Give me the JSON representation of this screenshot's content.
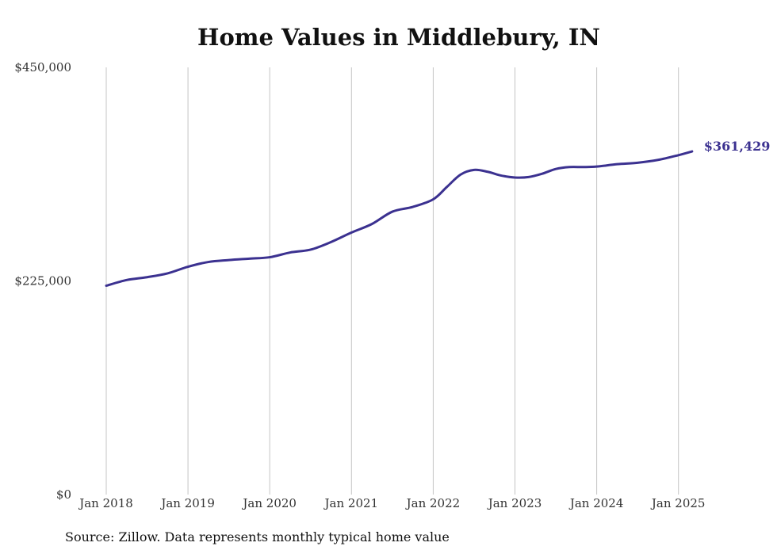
{
  "chart_data": {
    "type": "line",
    "title": "Home Values in Middlebury, IN",
    "xlabel": "",
    "ylabel": "",
    "ylim": [
      0,
      450000
    ],
    "y_ticks": [
      {
        "value": 0,
        "label": "$0"
      },
      {
        "value": 225000,
        "label": "$225,000"
      },
      {
        "value": 450000,
        "label": "$450,000"
      }
    ],
    "x_ticks": [
      {
        "value": "2018-01",
        "label": "Jan 2018"
      },
      {
        "value": "2019-01",
        "label": "Jan 2019"
      },
      {
        "value": "2020-01",
        "label": "Jan 2020"
      },
      {
        "value": "2021-01",
        "label": "Jan 2021"
      },
      {
        "value": "2022-01",
        "label": "Jan 2022"
      },
      {
        "value": "2023-01",
        "label": "Jan 2023"
      },
      {
        "value": "2024-01",
        "label": "Jan 2024"
      },
      {
        "value": "2025-01",
        "label": "Jan 2025"
      }
    ],
    "grid": {
      "vertical": true,
      "horizontal": false
    },
    "series": [
      {
        "color": "#3b3190",
        "end_label": "$361,429",
        "points": [
          {
            "x": "2018-01",
            "y": 220000
          },
          {
            "x": "2018-04",
            "y": 226000
          },
          {
            "x": "2018-07",
            "y": 229000
          },
          {
            "x": "2018-10",
            "y": 233000
          },
          {
            "x": "2019-01",
            "y": 240000
          },
          {
            "x": "2019-04",
            "y": 245000
          },
          {
            "x": "2019-07",
            "y": 247000
          },
          {
            "x": "2019-10",
            "y": 248500
          },
          {
            "x": "2020-01",
            "y": 250000
          },
          {
            "x": "2020-04",
            "y": 255000
          },
          {
            "x": "2020-07",
            "y": 258000
          },
          {
            "x": "2020-10",
            "y": 266000
          },
          {
            "x": "2021-01",
            "y": 276000
          },
          {
            "x": "2021-04",
            "y": 285000
          },
          {
            "x": "2021-07",
            "y": 298000
          },
          {
            "x": "2021-10",
            "y": 303000
          },
          {
            "x": "2022-01",
            "y": 311000
          },
          {
            "x": "2022-03",
            "y": 324000
          },
          {
            "x": "2022-05",
            "y": 337000
          },
          {
            "x": "2022-07",
            "y": 342000
          },
          {
            "x": "2022-09",
            "y": 340000
          },
          {
            "x": "2022-11",
            "y": 336000
          },
          {
            "x": "2023-01",
            "y": 334000
          },
          {
            "x": "2023-03",
            "y": 334500
          },
          {
            "x": "2023-05",
            "y": 338000
          },
          {
            "x": "2023-07",
            "y": 343000
          },
          {
            "x": "2023-09",
            "y": 345000
          },
          {
            "x": "2023-11",
            "y": 345000
          },
          {
            "x": "2024-01",
            "y": 345500
          },
          {
            "x": "2024-04",
            "y": 348000
          },
          {
            "x": "2024-07",
            "y": 349500
          },
          {
            "x": "2024-10",
            "y": 352500
          },
          {
            "x": "2025-01",
            "y": 357500
          },
          {
            "x": "2025-03",
            "y": 361429
          }
        ]
      }
    ],
    "source": "Source: Zillow. Data represents monthly typical home value"
  }
}
